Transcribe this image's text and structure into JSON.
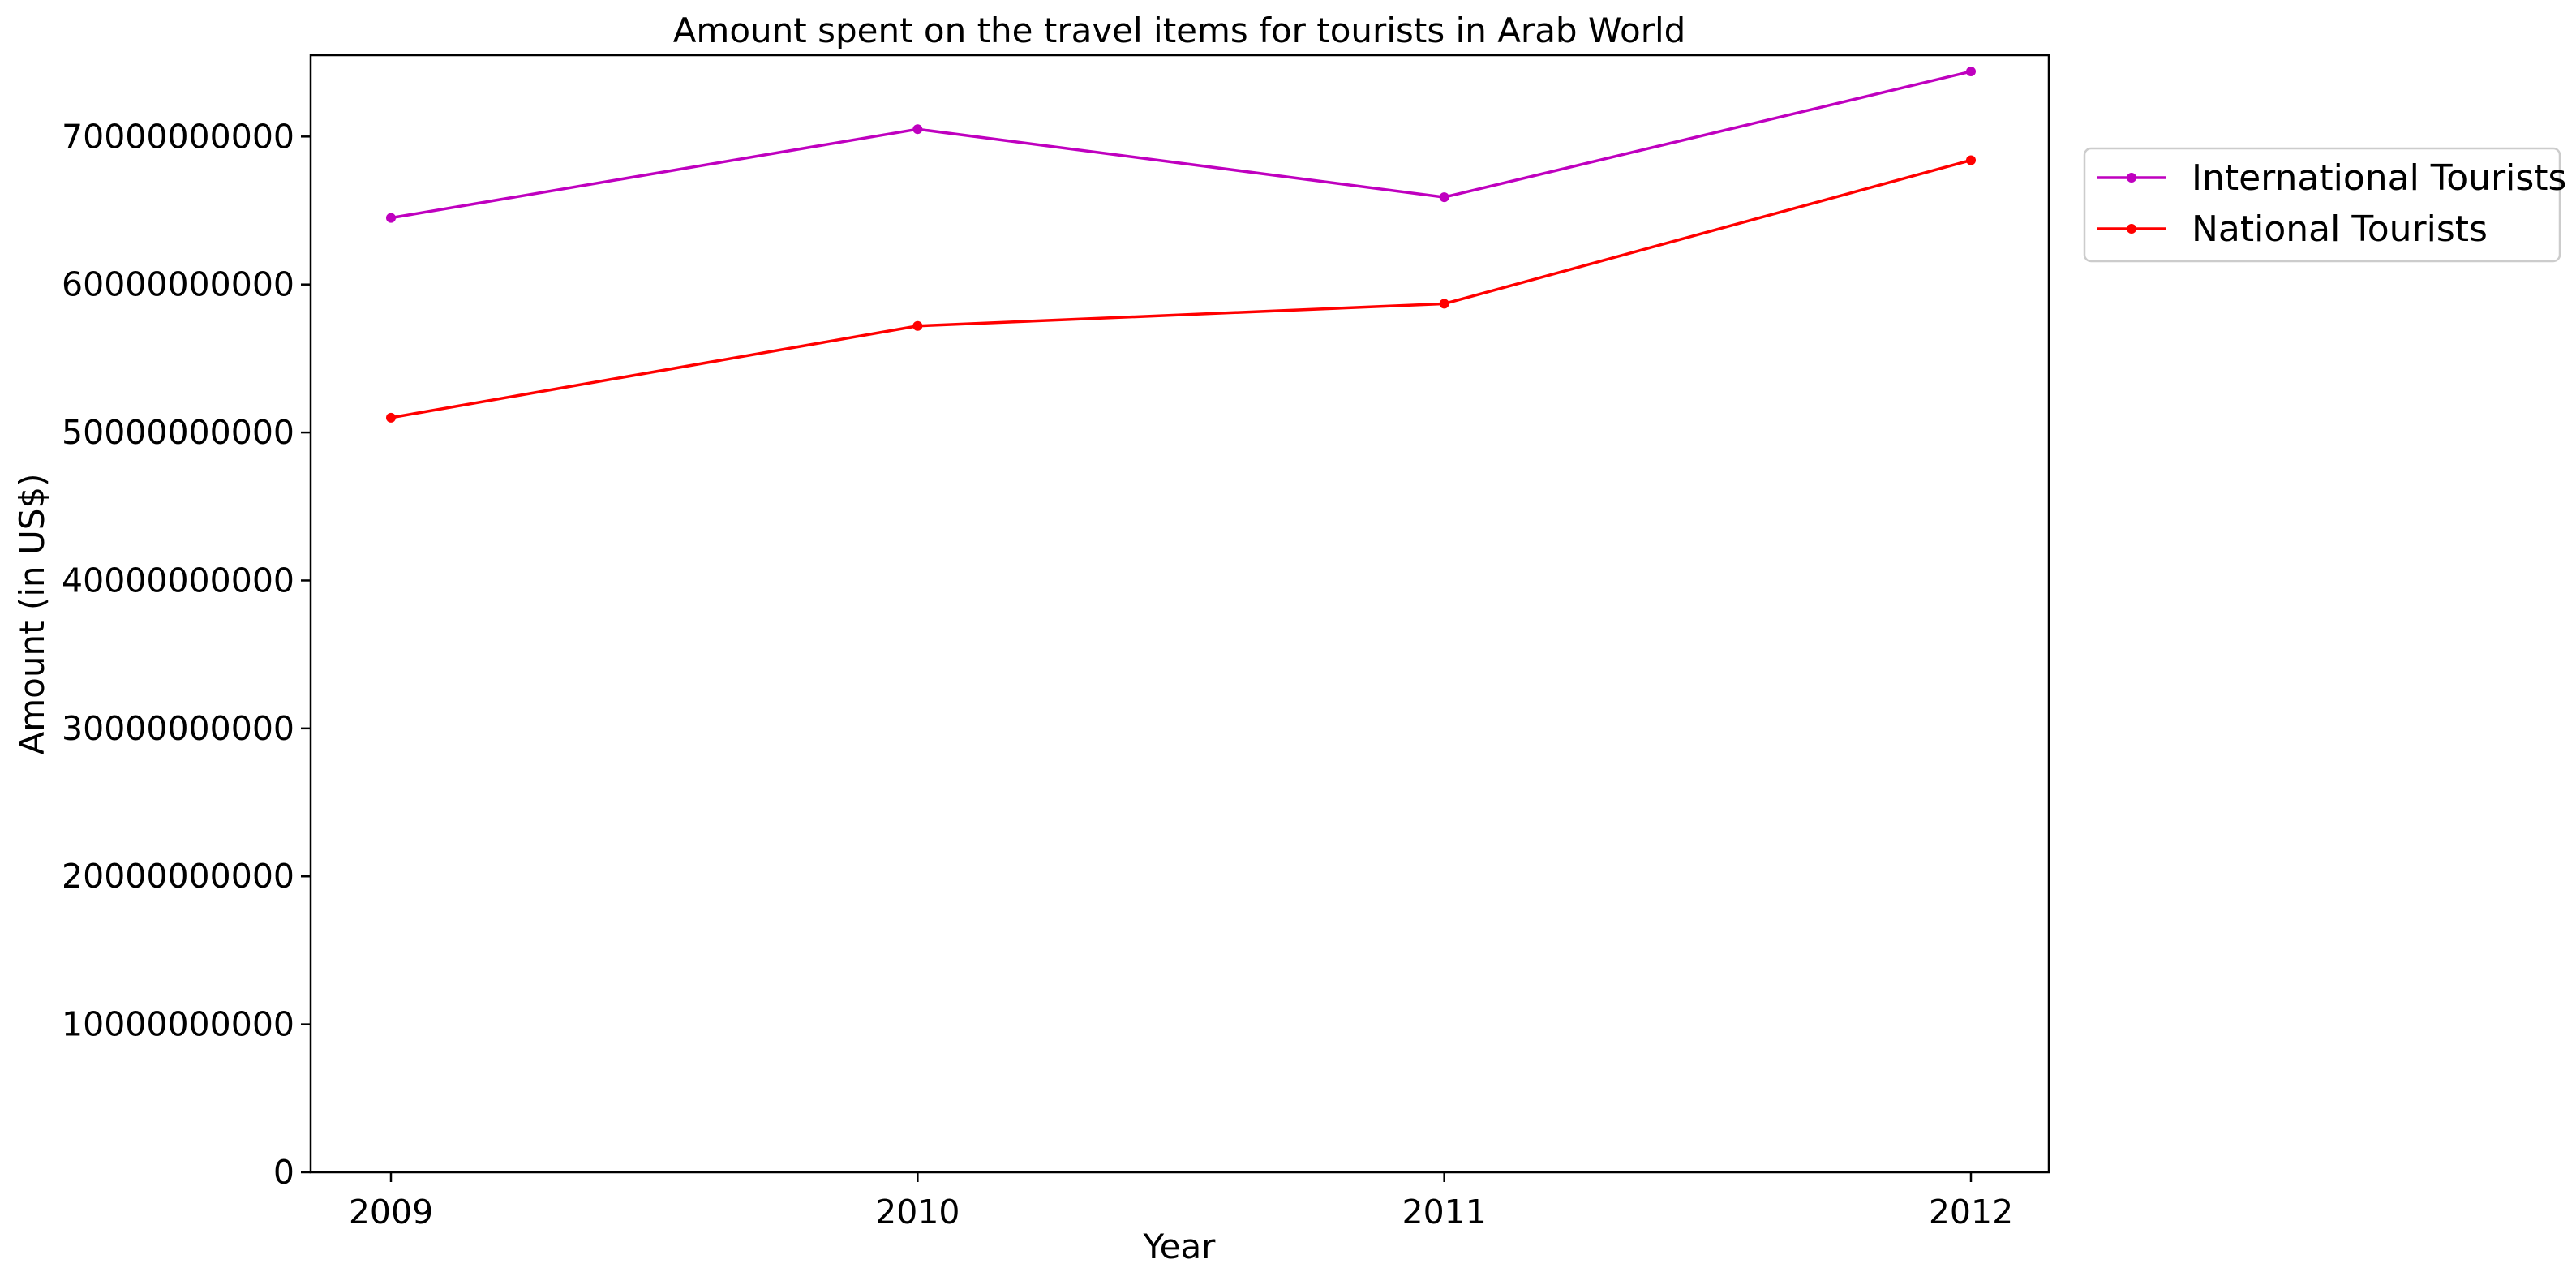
{
  "chart_data": {
    "type": "line",
    "title": "Amount spent on the travel items for tourists in Arab World",
    "xlabel": "Year",
    "ylabel": "Amount (in US$)",
    "categories": [
      "2009",
      "2010",
      "2011",
      "2012"
    ],
    "ylim": [
      0,
      75500000000
    ],
    "yticks": [
      0,
      10000000000,
      20000000000,
      30000000000,
      40000000000,
      50000000000,
      60000000000,
      70000000000
    ],
    "ytick_labels": [
      "0",
      "10000000000",
      "20000000000",
      "30000000000",
      "40000000000",
      "50000000000",
      "60000000000",
      "70000000000"
    ],
    "grid": false,
    "legend_position": "outside top-right",
    "series": [
      {
        "name": "International Tourists",
        "color": "#BF00BF",
        "values": [
          64500000000,
          70500000000,
          65900000000,
          74400000000
        ]
      },
      {
        "name": "National Tourists",
        "color": "#FF0000",
        "values": [
          51000000000,
          57200000000,
          58700000000,
          68400000000
        ]
      }
    ]
  }
}
